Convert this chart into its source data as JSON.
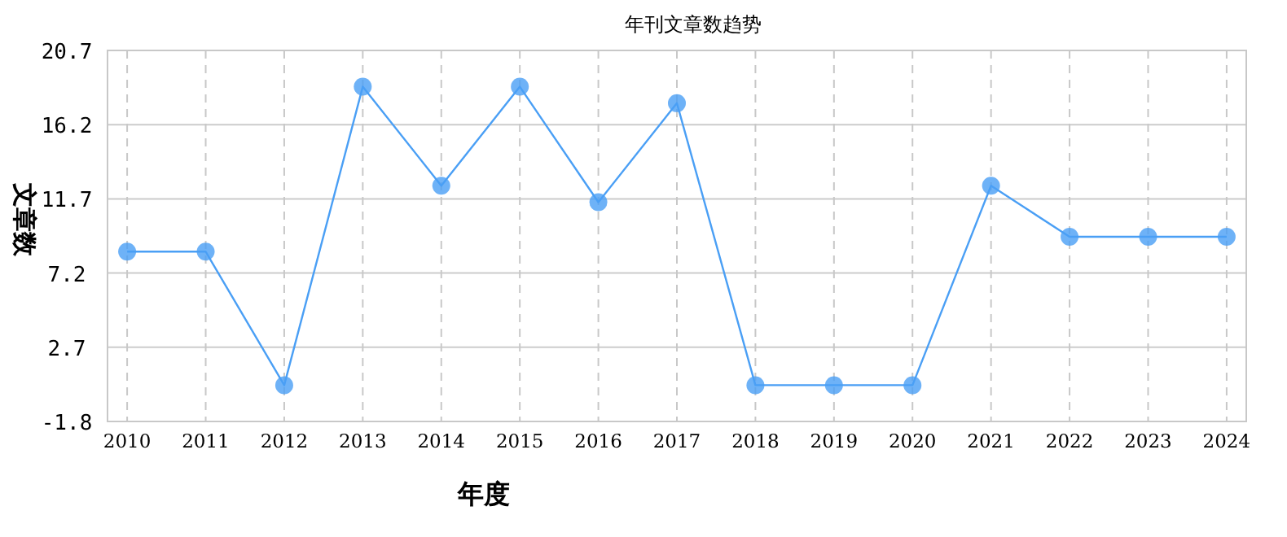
{
  "chart_data": {
    "type": "line",
    "title": "年刊文章数趋势",
    "xlabel": "年度",
    "ylabel": "文章数",
    "categories": [
      "2010",
      "2011",
      "2012",
      "2013",
      "2014",
      "2015",
      "2016",
      "2017",
      "2018",
      "2019",
      "2020",
      "2021",
      "2022",
      "2023",
      "2024"
    ],
    "series": [
      {
        "color": "#4a9ff5",
        "values": [
          8.5,
          8.5,
          0.4,
          18.5,
          12.5,
          18.5,
          11.5,
          17.5,
          0.4,
          0.4,
          0.4,
          12.5,
          9.4,
          9.4,
          9.4
        ]
      }
    ],
    "ylim": [
      -1.8,
      20.7
    ],
    "yticks": [
      -1.8,
      2.7,
      7.2,
      11.7,
      16.2,
      20.7
    ],
    "grid": true,
    "marker": "circle",
    "line_style": "solid"
  }
}
